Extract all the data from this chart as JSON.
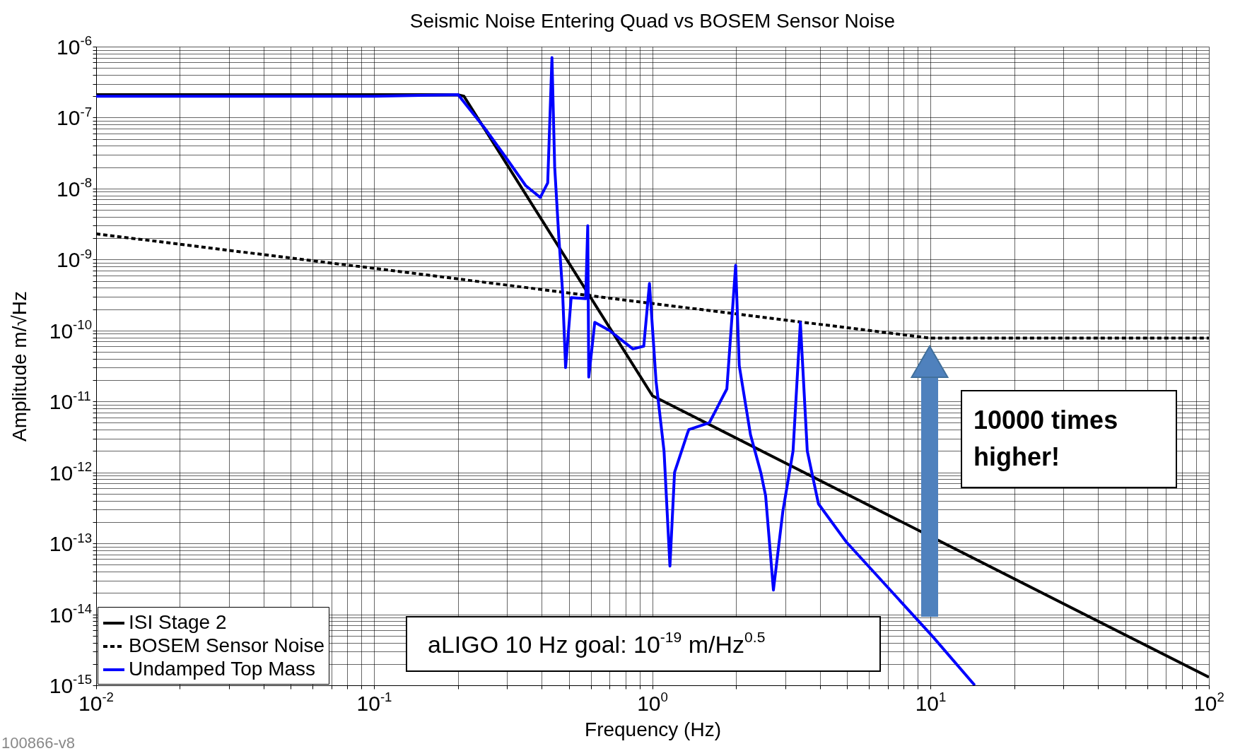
{
  "chart_data": {
    "type": "line",
    "title": "Seismic Noise Entering Quad vs BOSEM Sensor Noise",
    "xlabel": "Frequency (Hz)",
    "ylabel": "Amplitude m/√Hz",
    "log": "xy",
    "grid": true,
    "legend": "bottom left",
    "marker": "none",
    "xlim": [
      0.01,
      100
    ],
    "ylim": [
      1e-15,
      1e-06
    ],
    "xticks": [
      {
        "value": 0.01,
        "label": "10$^{-2}$"
      },
      {
        "value": 0.1,
        "label": "10$^{-1}$"
      },
      {
        "value": 1,
        "label": "10$^{0}$"
      },
      {
        "value": 10,
        "label": "10$^{1}$"
      },
      {
        "value": 100,
        "label": "10$^{2}$"
      }
    ],
    "yticks": [
      {
        "value": 1e-15,
        "label": "10$^{-15}$"
      },
      {
        "value": 1e-14,
        "label": "10$^{-14}$"
      },
      {
        "value": 1e-13,
        "label": "10$^{-13}$"
      },
      {
        "value": 1e-12,
        "label": "10$^{-12}$"
      },
      {
        "value": 1e-11,
        "label": "10$^{-11}$"
      },
      {
        "value": 1e-10,
        "label": "10$^{-10}$"
      },
      {
        "value": 1e-09,
        "label": "10$^{-9}$"
      },
      {
        "value": 1e-08,
        "label": "10$^{-8}$"
      },
      {
        "value": 1e-07,
        "label": "10$^{-7}$"
      },
      {
        "value": 1e-06,
        "label": "10$^{-6}$"
      }
    ],
    "series": [
      {
        "name": "ISI Stage 2",
        "color": "#000000",
        "line_style": "solid",
        "x": [
          0.01,
          0.2,
          0.21,
          1.0,
          100
        ],
        "values": [
          2.1e-07,
          2.1e-07,
          2e-07,
          1.2e-11,
          1.3e-15
        ]
      },
      {
        "name": "BOSEM Sensor Noise",
        "color": "#000000",
        "line_style": "dashed",
        "x": [
          0.01,
          0.1,
          1,
          10,
          100
        ],
        "values": [
          2.3e-09,
          7.5e-10,
          2.4e-10,
          7.8e-11,
          7.8e-11
        ]
      },
      {
        "name": "Undamped Top Mass",
        "color": "#0000ff",
        "line_style": "solid",
        "x": [
          0.01,
          0.1,
          0.2,
          0.25,
          0.3,
          0.35,
          0.395,
          0.42,
          0.435,
          0.445,
          0.46,
          0.475,
          0.487,
          0.51,
          0.575,
          0.585,
          0.59,
          0.62,
          0.7,
          0.85,
          0.93,
          0.975,
          1.03,
          1.1,
          1.155,
          1.2,
          1.33,
          1.35,
          1.6,
          1.85,
          1.99,
          2.05,
          2.25,
          2.45,
          2.55,
          2.72,
          2.94,
          3.2,
          3.4,
          3.6,
          3.95,
          4.97,
          10.2,
          14.4
        ],
        "values": [
          2e-07,
          2e-07,
          2.1e-07,
          7e-08,
          2.6e-08,
          1.1e-08,
          7.5e-09,
          1.2e-08,
          7e-07,
          2e-08,
          2.2e-09,
          3.5e-10,
          3e-11,
          2.9e-10,
          2.8e-10,
          3e-09,
          2.2e-11,
          1.3e-10,
          1e-10,
          5.5e-11,
          6e-11,
          4.6e-10,
          1.9e-11,
          2e-12,
          4.8e-14,
          1e-12,
          3.4e-12,
          4e-12,
          5e-12,
          1.5e-11,
          8.3e-10,
          3.2e-11,
          3.4e-12,
          1e-12,
          4.7e-13,
          2.2e-14,
          2.8e-13,
          2e-12,
          1.3e-10,
          2e-12,
          3.6e-13,
          1.05e-13,
          4.8e-15,
          1e-15
        ]
      }
    ],
    "annotations": [
      "10000 times\nhigher!",
      "aLIGO 10 Hz goal: 10$^{-19}$ m/Hz$^{0.5}$",
      "100866-v8"
    ]
  }
}
